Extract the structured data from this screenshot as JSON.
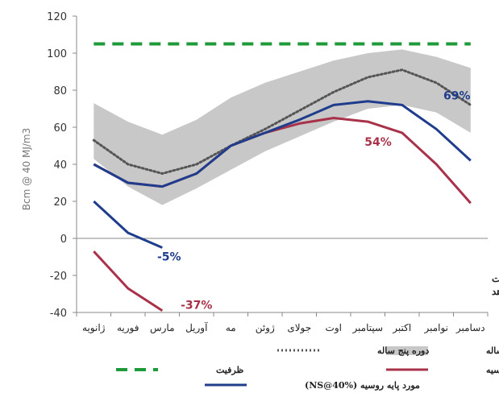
{
  "chart_data": {
    "type": "line",
    "title": "",
    "ylabel": "Bcm @ 40 MJ/m3",
    "ylim": [
      -40,
      120
    ],
    "yticks": [
      -40,
      -20,
      0,
      20,
      40,
      60,
      80,
      100,
      120
    ],
    "categories": [
      "ژانویه",
      "فوریه",
      "مارس",
      "آوریل",
      "مه",
      "ژوئن",
      "جولای",
      "اوت",
      "سپتامبر",
      "اکتبر",
      "نوامبر",
      "دسامبر"
    ],
    "band": {
      "name": "دوره پنج ساله",
      "color": "#c8c8c8",
      "lower": [
        43,
        28,
        18,
        27,
        37,
        47,
        55,
        63,
        70,
        72,
        68,
        57
      ],
      "upper": [
        73,
        63,
        56,
        64,
        76,
        84,
        90,
        96,
        100,
        102,
        98,
        92
      ]
    },
    "series": [
      {
        "name": "دوره پنج ساله",
        "style": "dotted",
        "color": "#555555",
        "values": [
          53,
          40,
          35,
          40,
          50,
          59,
          69,
          79,
          87,
          91,
          84,
          72
        ]
      },
      {
        "name": "ظرفیت",
        "style": "dashed",
        "color": "#1f9a3a",
        "values": [
          105,
          105,
          105,
          105,
          105,
          105,
          105,
          105,
          105,
          105,
          105,
          105
        ]
      },
      {
        "name": "مورد پایه روسیه",
        "style": "solid",
        "color": "#a8324a",
        "values": [
          40,
          30,
          28,
          35,
          50,
          57,
          62,
          65,
          63,
          57,
          40,
          19
        ]
      },
      {
        "name": "مورد پایه روسیه (NS@40%)",
        "style": "solid",
        "color": "#1f3d8c",
        "values": [
          40,
          30,
          28,
          35,
          50,
          57,
          64,
          72,
          74,
          72,
          59,
          42
        ]
      },
      {
        "name": "",
        "style": "solid",
        "color": "#1f3d8c",
        "values": [
          20,
          3,
          -5,
          null,
          null,
          null,
          null,
          null,
          null,
          null,
          null,
          null
        ]
      },
      {
        "name": "",
        "style": "solid",
        "color": "#a8324a",
        "values": [
          -7,
          -27,
          -39,
          null,
          null,
          null,
          null,
          null,
          null,
          null,
          null,
          null
        ]
      }
    ],
    "data_labels": [
      {
        "text": "69%",
        "x_index": 10.6,
        "y": 75,
        "color": "#1f3d8c"
      },
      {
        "text": "54%",
        "x_index": 8.3,
        "y": 50,
        "color": "#a8324a"
      },
      {
        "text": "-5%",
        "x_index": 2.2,
        "y": -12,
        "color": "#1f3d8c"
      },
      {
        "text": "-37%",
        "x_index": 3.0,
        "y": -38,
        "color": "#a8324a"
      }
    ],
    "annotation": {
      "line1": "توجه: هیچ گونه اقدام جبرانی در نظر گرفته نشده است",
      "line2": "که بتواند کمبود عرضه را کاهش دهد"
    },
    "legend": [
      {
        "label": "دوره پنج ساله",
        "kind": "band",
        "color": "#c8c8c8"
      },
      {
        "label": "دوره پنج ساله",
        "kind": "dotted",
        "color": "#555555"
      },
      {
        "label": "ظرفیت",
        "kind": "dashed",
        "color": "#1f9a3a"
      },
      {
        "label": "مورد پایه روسیه",
        "kind": "solid",
        "color": "#a8324a"
      },
      {
        "label": "مورد پایه روسیه (NS@40%)",
        "kind": "solid",
        "color": "#1f3d8c"
      }
    ]
  }
}
